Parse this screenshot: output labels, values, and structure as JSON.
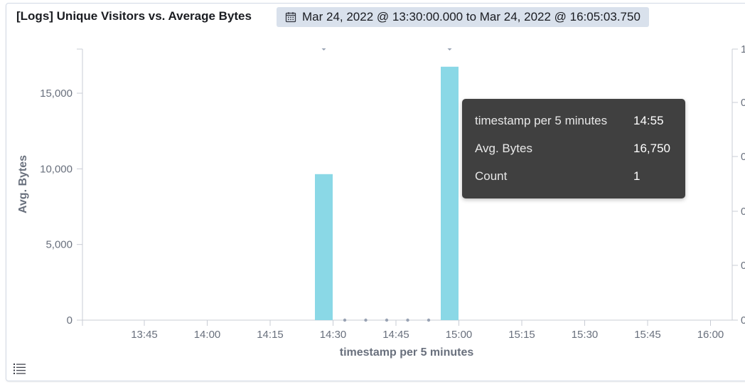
{
  "panel": {
    "title": "[Logs] Unique Visitors vs. Average Bytes",
    "time_range": "Mar 24, 2022 @ 13:30:00.000 to Mar 24, 2022 @ 16:05:03.750",
    "calendar_icon": "calendar-icon",
    "legend_icon": "list-icon"
  },
  "tooltip": {
    "rows": [
      {
        "key": "timestamp per 5 minutes",
        "value": "14:55"
      },
      {
        "key": "Avg. Bytes",
        "value": "16,750"
      },
      {
        "key": "Count",
        "value": "1"
      }
    ]
  },
  "chart_data": {
    "type": "bar",
    "xlabel": "timestamp per 5 minutes",
    "ylabel": "Avg. Bytes",
    "x_ticks": [
      "13:45",
      "14:00",
      "14:15",
      "14:30",
      "14:45",
      "15:00",
      "15:15",
      "15:30",
      "15:45",
      "16:00"
    ],
    "y_ticks": [
      "0",
      "5,000",
      "10,000",
      "15,000"
    ],
    "ylim": [
      0,
      18000
    ],
    "xlim": [
      "13:30",
      "16:05"
    ],
    "bar_color": "#8ad8e6",
    "series": [
      {
        "name": "Avg. Bytes",
        "x": [
          "14:25",
          "14:55"
        ],
        "values": [
          9650,
          16750
        ]
      },
      {
        "name": "Unique Visitors",
        "x": [
          "14:25",
          "14:30",
          "14:35",
          "14:40",
          "14:45",
          "14:50",
          "14:55"
        ],
        "values": [
          1,
          0,
          0,
          0,
          0,
          0,
          1
        ],
        "axis": "right"
      }
    ],
    "right_y_ticks": [
      "0",
      "0",
      "0",
      "0",
      "0",
      "1"
    ],
    "grid": false
  }
}
